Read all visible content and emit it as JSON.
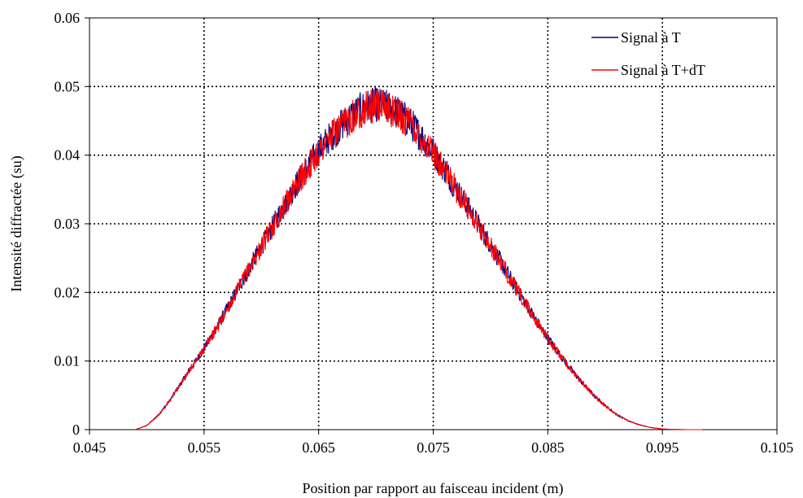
{
  "chart_data": {
    "type": "line",
    "title": "",
    "xlabel": "Position par rapport au faisceau incident (m)",
    "ylabel": "Intensité diffractée (su)",
    "xlim": [
      0.045,
      0.105
    ],
    "ylim": [
      0,
      0.06
    ],
    "x_ticks": [
      0.045,
      0.055,
      0.065,
      0.075,
      0.085,
      0.095,
      0.105
    ],
    "x_tick_labels": [
      "0.045",
      "0.055",
      "0.065",
      "0.075",
      "0.085",
      "0.095",
      "0.105"
    ],
    "y_ticks": [
      0,
      0.01,
      0.02,
      0.03,
      0.04,
      0.05,
      0.06
    ],
    "y_tick_labels": [
      "0",
      "0.01",
      "0.02",
      "0.03",
      "0.04",
      "0.05",
      "0.06"
    ],
    "grid": true,
    "grid_style": "dotted",
    "legend_position": "top-right",
    "series": [
      {
        "name": "Signal à T",
        "color": "#000080",
        "x": [
          0.049,
          0.05,
          0.051,
          0.052,
          0.053,
          0.054,
          0.055,
          0.056,
          0.057,
          0.058,
          0.059,
          0.06,
          0.061,
          0.062,
          0.063,
          0.064,
          0.065,
          0.066,
          0.067,
          0.068,
          0.069,
          0.07,
          0.071,
          0.072,
          0.073,
          0.074,
          0.075,
          0.076,
          0.077,
          0.078,
          0.079,
          0.08,
          0.081,
          0.082,
          0.083,
          0.084,
          0.085,
          0.086,
          0.087,
          0.088,
          0.089,
          0.09,
          0.091,
          0.092,
          0.093,
          0.094,
          0.095,
          0.096,
          0.097,
          0.098,
          0.0985
        ],
        "y": [
          0.0,
          0.0006,
          0.0021,
          0.0042,
          0.0068,
          0.0093,
          0.0118,
          0.0145,
          0.0175,
          0.0206,
          0.0236,
          0.0266,
          0.0296,
          0.0326,
          0.0355,
          0.038,
          0.0405,
          0.0425,
          0.0442,
          0.0458,
          0.0468,
          0.0472,
          0.0468,
          0.046,
          0.0445,
          0.0425,
          0.0403,
          0.0378,
          0.035,
          0.0324,
          0.0296,
          0.0268,
          0.024,
          0.0212,
          0.0185,
          0.0158,
          0.0133,
          0.011,
          0.0088,
          0.0068,
          0.005,
          0.0035,
          0.0022,
          0.0013,
          0.0007,
          0.0003,
          0.0001,
          3e-05,
          0.0,
          0.0,
          0.0
        ]
      },
      {
        "name": "Signal à T+dT",
        "color": "#ff0000",
        "x": [
          0.049,
          0.05,
          0.051,
          0.052,
          0.053,
          0.054,
          0.055,
          0.056,
          0.057,
          0.058,
          0.059,
          0.06,
          0.061,
          0.062,
          0.063,
          0.064,
          0.065,
          0.066,
          0.067,
          0.068,
          0.069,
          0.07,
          0.071,
          0.072,
          0.073,
          0.074,
          0.075,
          0.076,
          0.077,
          0.078,
          0.079,
          0.08,
          0.081,
          0.082,
          0.083,
          0.084,
          0.085,
          0.086,
          0.087,
          0.088,
          0.089,
          0.09,
          0.091,
          0.092,
          0.093,
          0.094,
          0.095,
          0.096,
          0.097,
          0.098,
          0.0985
        ],
        "y": [
          0.0,
          0.0006,
          0.0021,
          0.0042,
          0.0068,
          0.0093,
          0.0118,
          0.0145,
          0.0175,
          0.0206,
          0.0236,
          0.0266,
          0.0296,
          0.0326,
          0.0355,
          0.038,
          0.0405,
          0.0425,
          0.0442,
          0.0458,
          0.0468,
          0.0472,
          0.0468,
          0.046,
          0.0445,
          0.0425,
          0.0403,
          0.0378,
          0.035,
          0.0324,
          0.0296,
          0.0268,
          0.024,
          0.0212,
          0.0185,
          0.0158,
          0.0133,
          0.011,
          0.0088,
          0.0068,
          0.005,
          0.0035,
          0.0022,
          0.0013,
          0.0007,
          0.0003,
          0.0001,
          3e-05,
          0.0,
          0.0,
          0.0
        ]
      }
    ]
  }
}
